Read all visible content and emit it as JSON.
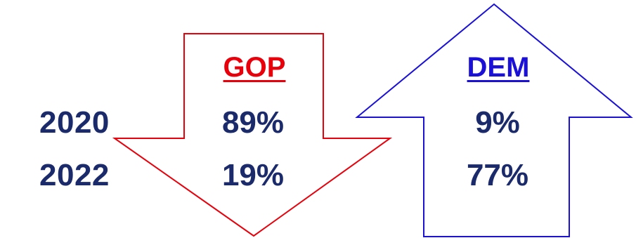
{
  "colors": {
    "gop": "#e8000b",
    "dem": "#1a10d6",
    "numbers": "#1b2a6b",
    "background": "#ffffff"
  },
  "arrows": {
    "gop": {
      "direction": "down",
      "icon": "down-arrow-outline-icon"
    },
    "dem": {
      "direction": "up",
      "icon": "up-arrow-outline-icon"
    }
  },
  "parties": {
    "gop": "GOP",
    "dem": "DEM"
  },
  "rows": [
    {
      "year": "2020",
      "gop": "89%",
      "dem": "9%"
    },
    {
      "year": "2022",
      "gop": "19%",
      "dem": "77%"
    }
  ]
}
